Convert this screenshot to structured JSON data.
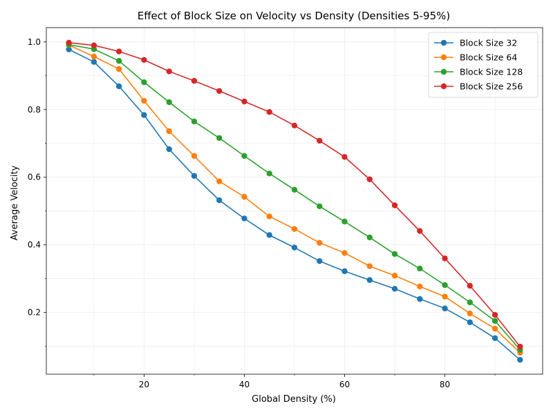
{
  "chart_data": {
    "type": "line",
    "title": "Effect of Block Size on Velocity vs Density (Densities 5-95%)",
    "xlabel": "Global Density (%)",
    "ylabel": "Average Velocity",
    "xlim": [
      0.5,
      99.5
    ],
    "ylim": [
      0.0175,
      1.0425
    ],
    "x_ticks": [
      20,
      40,
      60,
      80
    ],
    "y_ticks": [
      0.2,
      0.4,
      0.6,
      0.8,
      1.0
    ],
    "grid": true,
    "legend_position": "top-right",
    "x": [
      5,
      10,
      15,
      20,
      25,
      30,
      35,
      40,
      45,
      50,
      55,
      60,
      65,
      70,
      75,
      80,
      85,
      90,
      95
    ],
    "series": [
      {
        "name": "Block Size 32",
        "color": "#1f77b4",
        "values": [
          0.978,
          0.941,
          0.869,
          0.784,
          0.683,
          0.604,
          0.532,
          0.478,
          0.429,
          0.392,
          0.352,
          0.322,
          0.296,
          0.27,
          0.24,
          0.212,
          0.171,
          0.124,
          0.06
        ]
      },
      {
        "name": "Block Size 64",
        "color": "#ff7f0e",
        "values": [
          0.991,
          0.957,
          0.92,
          0.826,
          0.736,
          0.663,
          0.588,
          0.542,
          0.484,
          0.447,
          0.406,
          0.376,
          0.337,
          0.309,
          0.277,
          0.247,
          0.197,
          0.152,
          0.081
        ]
      },
      {
        "name": "Block Size 128",
        "color": "#2ca02c",
        "values": [
          0.992,
          0.979,
          0.944,
          0.881,
          0.822,
          0.765,
          0.716,
          0.663,
          0.611,
          0.563,
          0.514,
          0.469,
          0.422,
          0.373,
          0.33,
          0.281,
          0.23,
          0.175,
          0.09
        ]
      },
      {
        "name": "Block Size 256",
        "color": "#d62728",
        "values": [
          0.998,
          0.99,
          0.972,
          0.947,
          0.913,
          0.885,
          0.855,
          0.824,
          0.793,
          0.753,
          0.708,
          0.66,
          0.594,
          0.517,
          0.441,
          0.36,
          0.279,
          0.193,
          0.099
        ]
      }
    ]
  }
}
